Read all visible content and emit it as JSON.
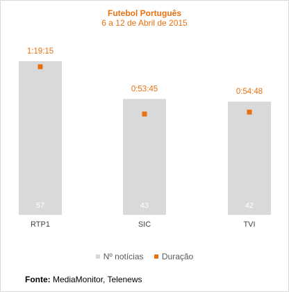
{
  "chart_data": {
    "type": "bar",
    "title": "Futebol Português",
    "subtitle": "6 a 12 de Abril de 2015",
    "categories": [
      "RTP1",
      "SIC",
      "TVI"
    ],
    "series": [
      {
        "name": "Nº notícias",
        "type": "bar",
        "color": "#d9d9d9",
        "values": [
          57,
          43,
          42
        ]
      },
      {
        "name": "Duração",
        "type": "scatter",
        "color": "#e8700f",
        "values": [
          "1:19:15",
          "0:53:45",
          "0:54:48"
        ],
        "seconds": [
          4755,
          3225,
          3288
        ]
      }
    ],
    "ylim": [
      0,
      57
    ],
    "legend": "bottom"
  },
  "source": {
    "label": "Fonte:",
    "text": "MediaMonitor, Telenews"
  }
}
